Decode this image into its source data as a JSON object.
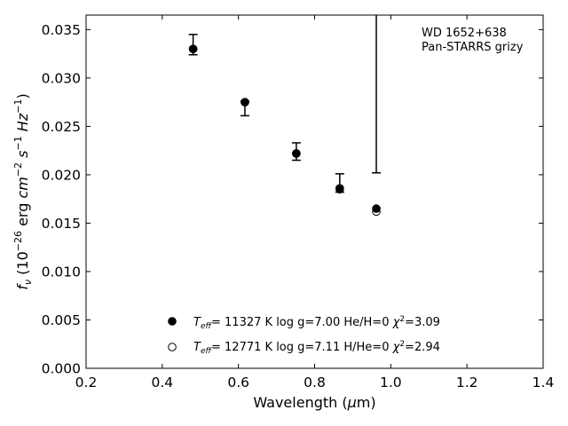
{
  "chart_data": {
    "type": "scatter",
    "xlabel": "Wavelength (μm)",
    "ylabel": "fν (10⁻²⁶ erg cm⁻² s⁻¹ Hz⁻¹)",
    "xlim": [
      0.2,
      1.4
    ],
    "ylim": [
      0.0,
      0.0365
    ],
    "x_ticks": [
      "0.2",
      "0.4",
      "0.6",
      "0.8",
      "1.0",
      "1.2",
      "1.4"
    ],
    "y_ticks": [
      "0.000",
      "0.005",
      "0.010",
      "0.015",
      "0.020",
      "0.025",
      "0.030",
      "0.035"
    ],
    "grid": false,
    "annotation": [
      "WD 1652+638",
      "Pan-STARRS grizy"
    ],
    "observed": {
      "x": [
        0.481,
        0.617,
        0.752,
        0.866,
        0.962
      ],
      "y": [
        0.0331,
        0.0274,
        0.0224,
        0.0188,
        0.0164
      ],
      "err_low": [
        0.0324,
        0.0261,
        0.0215,
        0.0182,
        null
      ],
      "err_high": [
        0.0345,
        0.0276,
        0.0233,
        0.0201,
        null
      ],
      "upper_cap": [
        null,
        null,
        null,
        null,
        0.0202
      ]
    },
    "series": [
      {
        "name": "Teff= 11327 K  log g=7.00  He/H=0  χ²=3.09",
        "marker": "filled-circle",
        "x": [
          0.481,
          0.617,
          0.752,
          0.866,
          0.962
        ],
        "y": [
          0.033,
          0.0275,
          0.0222,
          0.0185,
          0.0165
        ]
      },
      {
        "name": "Teff= 12771 K  log g=7.11  H/He=0  χ²=2.94",
        "marker": "open-circle",
        "x": [
          0.481,
          0.617,
          0.752,
          0.866,
          0.962
        ],
        "y": [
          0.033,
          0.0275,
          0.0222,
          0.0186,
          0.0162
        ]
      }
    ],
    "legend": [
      {
        "marker": "filled-circle",
        "teff": "11327 K",
        "logg": "log g=7.00",
        "comp": "He/H=0",
        "chi2": "=3.09"
      },
      {
        "marker": "open-circle",
        "teff": "12771 K",
        "logg": "log g=7.11",
        "comp": "H/He=0",
        "chi2": "=2.94"
      }
    ],
    "legend_position": "lower-center"
  }
}
